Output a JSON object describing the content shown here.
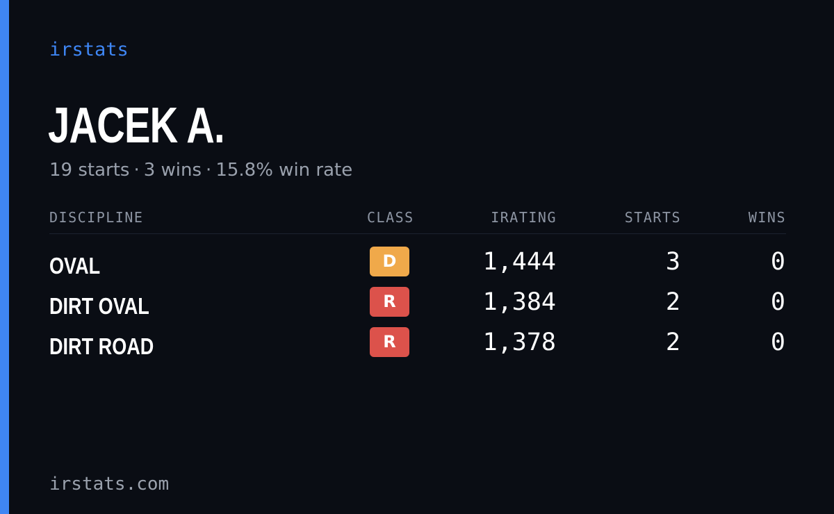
{
  "brand": "irstats",
  "driver": {
    "name": "JACEK A.",
    "starts_text": "19 starts",
    "wins_text": "3 wins",
    "win_rate_text": "15.8% win rate",
    "separator": "·"
  },
  "table": {
    "headers": {
      "discipline": "DISCIPLINE",
      "class": "CLASS",
      "irating": "IRATING",
      "starts": "STARTS",
      "wins": "WINS"
    },
    "rows": [
      {
        "discipline": "OVAL",
        "class": "D",
        "class_color": "#f0a94a",
        "class_text_color": "#ffffff",
        "irating": "1,444",
        "starts": "3",
        "wins": "0"
      },
      {
        "discipline": "DIRT OVAL",
        "class": "R",
        "class_color": "#dc524b",
        "class_text_color": "#ffffff",
        "irating": "1,384",
        "starts": "2",
        "wins": "0"
      },
      {
        "discipline": "DIRT ROAD",
        "class": "R",
        "class_color": "#dc524b",
        "class_text_color": "#ffffff",
        "irating": "1,378",
        "starts": "2",
        "wins": "0"
      }
    ]
  },
  "footer": "irstats.com",
  "colors": {
    "background": "#0a0d14",
    "accent": "#3f86f4",
    "muted_text": "#9aa1ad"
  }
}
